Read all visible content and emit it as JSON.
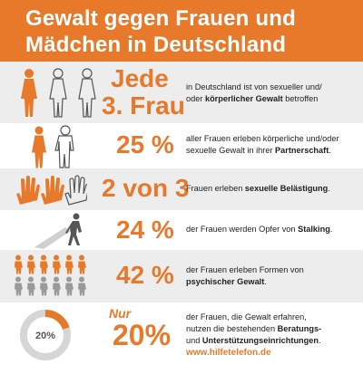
{
  "title": {
    "line1": "Gewalt gegen Frauen und",
    "line2": "Mädchen in Deutschland"
  },
  "colors": {
    "accent": "#e8792b",
    "gray_band": "#ededed",
    "figure_gray": "#9a9a9a",
    "text": "#222222"
  },
  "stats": [
    {
      "big_line1": "Jede",
      "big_line2": "3. Frau",
      "desc_parts": [
        "in Deutschland ist von sexueller und/",
        "oder ",
        "körperlicher Gewalt",
        " betroffen"
      ],
      "icon": "three-women-figures-icon"
    },
    {
      "big": "25 %",
      "desc_parts": [
        "aller Frauen erleben körperliche und/oder",
        "sexuelle Gewalt in ihrer ",
        "Partnerschaft",
        "."
      ],
      "icon": "woman-and-partner-figures-icon"
    },
    {
      "big": "2 von 3",
      "desc_parts": [
        "Frauen erleben ",
        "sexuelle Belästigung",
        "."
      ],
      "icon": "three-hands-icon"
    },
    {
      "big": "24 %",
      "desc_parts": [
        "der Frauen werden Opfer von ",
        "Stalking",
        "."
      ],
      "icon": "stalker-shadow-icon"
    },
    {
      "big": "42 %",
      "desc_parts": [
        "der Frauen erleben Formen von",
        "psychischer Gewalt",
        "."
      ],
      "icon": "figure-grid-icon"
    },
    {
      "small": "Nur",
      "big": "20%",
      "badge": "20%",
      "desc_parts": [
        "der Frauen, die Gewalt erfahren,",
        "nutzen die bestehenden ",
        "Beratungs-",
        "und ",
        "Unterstützungseinrichtungen",
        "."
      ],
      "url": "www.hilfetelefon.de",
      "icon": "donut-20-percent-icon"
    }
  ]
}
